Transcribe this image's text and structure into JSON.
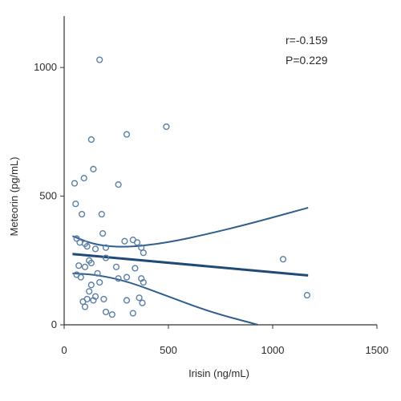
{
  "chart_data": {
    "type": "scatter",
    "title": "",
    "xlabel": "Irisin (ng/mL)",
    "ylabel": "Meteorin (pg/mL)",
    "xlim": [
      0,
      1500
    ],
    "ylim": [
      0,
      1200
    ],
    "xticks": [
      0,
      500,
      1000,
      1500
    ],
    "yticks": [
      0,
      500,
      1000
    ],
    "grid": false,
    "annotations": [
      "r=-0.159",
      "P=0.229"
    ],
    "colors": {
      "marker": "#5a7fa6",
      "line": "#1f4a78",
      "ci": "#2f5f8c",
      "axis": "#333333"
    },
    "points": [
      {
        "x": 170,
        "y": 1030
      },
      {
        "x": 490,
        "y": 770
      },
      {
        "x": 300,
        "y": 740
      },
      {
        "x": 130,
        "y": 720
      },
      {
        "x": 140,
        "y": 605
      },
      {
        "x": 95,
        "y": 570
      },
      {
        "x": 50,
        "y": 550
      },
      {
        "x": 260,
        "y": 545
      },
      {
        "x": 55,
        "y": 470
      },
      {
        "x": 85,
        "y": 430
      },
      {
        "x": 180,
        "y": 430
      },
      {
        "x": 185,
        "y": 355
      },
      {
        "x": 60,
        "y": 335
      },
      {
        "x": 75,
        "y": 320
      },
      {
        "x": 100,
        "y": 315
      },
      {
        "x": 110,
        "y": 305
      },
      {
        "x": 150,
        "y": 295
      },
      {
        "x": 200,
        "y": 300
      },
      {
        "x": 290,
        "y": 325
      },
      {
        "x": 330,
        "y": 330
      },
      {
        "x": 350,
        "y": 320
      },
      {
        "x": 370,
        "y": 300
      },
      {
        "x": 380,
        "y": 280
      },
      {
        "x": 200,
        "y": 260
      },
      {
        "x": 120,
        "y": 250
      },
      {
        "x": 70,
        "y": 230
      },
      {
        "x": 100,
        "y": 225
      },
      {
        "x": 130,
        "y": 240
      },
      {
        "x": 250,
        "y": 225
      },
      {
        "x": 340,
        "y": 220
      },
      {
        "x": 60,
        "y": 195
      },
      {
        "x": 80,
        "y": 185
      },
      {
        "x": 160,
        "y": 200
      },
      {
        "x": 170,
        "y": 165
      },
      {
        "x": 130,
        "y": 155
      },
      {
        "x": 260,
        "y": 180
      },
      {
        "x": 300,
        "y": 185
      },
      {
        "x": 370,
        "y": 180
      },
      {
        "x": 380,
        "y": 165
      },
      {
        "x": 120,
        "y": 130
      },
      {
        "x": 150,
        "y": 110
      },
      {
        "x": 110,
        "y": 100
      },
      {
        "x": 90,
        "y": 90
      },
      {
        "x": 140,
        "y": 95
      },
      {
        "x": 190,
        "y": 100
      },
      {
        "x": 300,
        "y": 95
      },
      {
        "x": 360,
        "y": 105
      },
      {
        "x": 375,
        "y": 85
      },
      {
        "x": 200,
        "y": 50
      },
      {
        "x": 230,
        "y": 40
      },
      {
        "x": 330,
        "y": 45
      },
      {
        "x": 100,
        "y": 70
      },
      {
        "x": 1050,
        "y": 255
      },
      {
        "x": 1165,
        "y": 115
      }
    ],
    "regression": {
      "x": [
        40,
        1170
      ],
      "y": [
        275,
        192
      ]
    },
    "ci_upper": {
      "x": [
        40,
        150,
        300,
        500,
        700,
        900,
        1170
      ],
      "y": [
        345,
        310,
        300,
        320,
        355,
        395,
        455
      ]
    },
    "ci_lower": {
      "x": [
        40,
        150,
        300,
        500,
        700,
        930
      ],
      "y": [
        200,
        195,
        170,
        110,
        50,
        0
      ]
    }
  }
}
